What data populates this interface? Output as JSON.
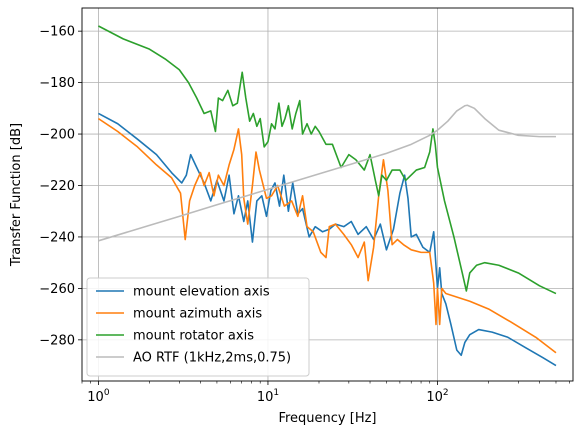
{
  "chart_data": {
    "type": "line",
    "xlabel": "Frequency [Hz]",
    "ylabel": "Transfer Function [dB]",
    "xscale": "log",
    "xlim": [
      0.8,
      630
    ],
    "ylim": [
      -296,
      -151
    ],
    "x_ticks": [
      {
        "value": 1,
        "base": "10",
        "exp": "0"
      },
      {
        "value": 10,
        "base": "10",
        "exp": "1"
      },
      {
        "value": 100,
        "base": "10",
        "exp": "2"
      }
    ],
    "y_ticks": [
      -280,
      -260,
      -240,
      -220,
      -200,
      -180,
      -160
    ],
    "y_tick_labels": [
      "−280",
      "−260",
      "−240",
      "−220",
      "−200",
      "−180",
      "−160"
    ],
    "grid": true,
    "legend_position": "lower-left",
    "series": [
      {
        "name": "mount elevation axis",
        "color": "#1f77b4",
        "points": [
          [
            1,
            -192
          ],
          [
            1.3,
            -196
          ],
          [
            1.7,
            -202
          ],
          [
            2.2,
            -208
          ],
          [
            2.7,
            -215
          ],
          [
            3.1,
            -219
          ],
          [
            3.3,
            -216
          ],
          [
            3.5,
            -208
          ],
          [
            3.8,
            -213
          ],
          [
            4.2,
            -219
          ],
          [
            4.6,
            -226
          ],
          [
            5,
            -218
          ],
          [
            5.5,
            -226
          ],
          [
            5.9,
            -216
          ],
          [
            6.3,
            -231
          ],
          [
            6.7,
            -224
          ],
          [
            7.2,
            -234
          ],
          [
            7.6,
            -226
          ],
          [
            8.1,
            -242
          ],
          [
            8.6,
            -226
          ],
          [
            9.2,
            -224
          ],
          [
            9.8,
            -232
          ],
          [
            10.4,
            -222
          ],
          [
            11,
            -219
          ],
          [
            11.7,
            -228
          ],
          [
            12.4,
            -216
          ],
          [
            13.2,
            -230
          ],
          [
            14,
            -219
          ],
          [
            15,
            -231
          ],
          [
            16,
            -229
          ],
          [
            17.5,
            -240
          ],
          [
            19,
            -236
          ],
          [
            21,
            -238
          ],
          [
            23,
            -237
          ],
          [
            25,
            -235
          ],
          [
            28,
            -236
          ],
          [
            31,
            -234
          ],
          [
            34,
            -239
          ],
          [
            38,
            -236
          ],
          [
            42,
            -241
          ],
          [
            46,
            -235
          ],
          [
            50,
            -245
          ],
          [
            55,
            -237
          ],
          [
            60,
            -223
          ],
          [
            64,
            -216
          ],
          [
            67,
            -225
          ],
          [
            70,
            -240
          ],
          [
            75,
            -239
          ],
          [
            82,
            -244
          ],
          [
            90,
            -246
          ],
          [
            95,
            -238
          ],
          [
            100,
            -260
          ],
          [
            103,
            -252
          ],
          [
            106,
            -262
          ],
          [
            112,
            -266
          ],
          [
            120,
            -274
          ],
          [
            130,
            -284
          ],
          [
            138,
            -286
          ],
          [
            145,
            -281
          ],
          [
            155,
            -278
          ],
          [
            175,
            -276
          ],
          [
            210,
            -277
          ],
          [
            260,
            -279
          ],
          [
            330,
            -283
          ],
          [
            420,
            -287
          ],
          [
            500,
            -290
          ]
        ]
      },
      {
        "name": "mount azimuth axis",
        "color": "#ff7f0e",
        "points": [
          [
            1,
            -194
          ],
          [
            1.3,
            -199
          ],
          [
            1.7,
            -205
          ],
          [
            2.2,
            -212
          ],
          [
            2.7,
            -217
          ],
          [
            3.05,
            -223
          ],
          [
            3.25,
            -241
          ],
          [
            3.45,
            -226
          ],
          [
            3.7,
            -220
          ],
          [
            4,
            -215
          ],
          [
            4.2,
            -220
          ],
          [
            4.5,
            -215
          ],
          [
            4.8,
            -224
          ],
          [
            5.1,
            -216
          ],
          [
            5.5,
            -220
          ],
          [
            5.9,
            -212
          ],
          [
            6.3,
            -206
          ],
          [
            6.7,
            -198
          ],
          [
            7,
            -208
          ],
          [
            7.2,
            -225
          ],
          [
            7.6,
            -235
          ],
          [
            8.1,
            -220
          ],
          [
            8.5,
            -207
          ],
          [
            8.9,
            -214
          ],
          [
            9.3,
            -219
          ],
          [
            9.8,
            -225
          ],
          [
            10.5,
            -224
          ],
          [
            11.4,
            -220
          ],
          [
            12.5,
            -228
          ],
          [
            13.8,
            -226
          ],
          [
            15,
            -232
          ],
          [
            16,
            -224
          ],
          [
            17,
            -236
          ],
          [
            18.5,
            -238
          ],
          [
            20.5,
            -246
          ],
          [
            22,
            -248
          ],
          [
            23,
            -236
          ],
          [
            25,
            -235
          ],
          [
            28,
            -239
          ],
          [
            31,
            -243
          ],
          [
            34,
            -248
          ],
          [
            37,
            -242
          ],
          [
            39,
            -257
          ],
          [
            42,
            -244
          ],
          [
            45,
            -224
          ],
          [
            48,
            -210
          ],
          [
            51,
            -222
          ],
          [
            54,
            -243
          ],
          [
            58,
            -241
          ],
          [
            63,
            -243
          ],
          [
            70,
            -245
          ],
          [
            80,
            -246
          ],
          [
            90,
            -246
          ],
          [
            95,
            -258
          ],
          [
            98,
            -274
          ],
          [
            100,
            -260
          ],
          [
            103,
            -274
          ],
          [
            106,
            -260
          ],
          [
            112,
            -262
          ],
          [
            125,
            -263
          ],
          [
            155,
            -265
          ],
          [
            200,
            -268
          ],
          [
            270,
            -273
          ],
          [
            380,
            -279
          ],
          [
            500,
            -285
          ]
        ]
      },
      {
        "name": "mount rotator axis",
        "color": "#2ca02c",
        "points": [
          [
            1,
            -158
          ],
          [
            1.4,
            -163
          ],
          [
            2,
            -167
          ],
          [
            2.5,
            -171
          ],
          [
            3,
            -175
          ],
          [
            3.4,
            -180
          ],
          [
            3.8,
            -186
          ],
          [
            4.2,
            -192
          ],
          [
            4.6,
            -191
          ],
          [
            4.9,
            -199
          ],
          [
            5.1,
            -186
          ],
          [
            5.4,
            -187
          ],
          [
            5.8,
            -183
          ],
          [
            6.2,
            -189
          ],
          [
            6.6,
            -188
          ],
          [
            7.05,
            -176
          ],
          [
            7.4,
            -186
          ],
          [
            7.8,
            -195
          ],
          [
            8.2,
            -192
          ],
          [
            8.6,
            -197
          ],
          [
            9,
            -194
          ],
          [
            9.5,
            -205
          ],
          [
            10,
            -203
          ],
          [
            10.5,
            -196
          ],
          [
            11,
            -198
          ],
          [
            11.6,
            -188
          ],
          [
            12.1,
            -197
          ],
          [
            12.6,
            -194
          ],
          [
            13.2,
            -189
          ],
          [
            13.9,
            -198
          ],
          [
            14.6,
            -192
          ],
          [
            15.4,
            -187
          ],
          [
            16,
            -200
          ],
          [
            17,
            -196
          ],
          [
            18,
            -200
          ],
          [
            19,
            -197
          ],
          [
            20,
            -199
          ],
          [
            22,
            -204
          ],
          [
            24,
            -204
          ],
          [
            27,
            -213
          ],
          [
            30,
            -208
          ],
          [
            33,
            -210
          ],
          [
            37,
            -214
          ],
          [
            40,
            -208
          ],
          [
            43,
            -218
          ],
          [
            45,
            -224
          ],
          [
            47,
            -216
          ],
          [
            50,
            -218
          ],
          [
            54,
            -214
          ],
          [
            60,
            -214
          ],
          [
            65,
            -218
          ],
          [
            75,
            -214
          ],
          [
            84,
            -213
          ],
          [
            90,
            -207
          ],
          [
            94,
            -198
          ],
          [
            97,
            -204
          ],
          [
            100,
            -213
          ],
          [
            110,
            -226
          ],
          [
            125,
            -240
          ],
          [
            140,
            -254
          ],
          [
            148,
            -261
          ],
          [
            155,
            -254
          ],
          [
            170,
            -251
          ],
          [
            190,
            -250
          ],
          [
            230,
            -251
          ],
          [
            300,
            -254
          ],
          [
            400,
            -259
          ],
          [
            500,
            -262
          ]
        ]
      },
      {
        "name": "AO RTF (1kHz,2ms,0.75)",
        "color": "#bbbbbb",
        "points": [
          [
            1,
            -241.5
          ],
          [
            2,
            -235.5
          ],
          [
            3,
            -232
          ],
          [
            5,
            -227.5
          ],
          [
            10,
            -221.5
          ],
          [
            20,
            -215.5
          ],
          [
            30,
            -212
          ],
          [
            50,
            -207.5
          ],
          [
            70,
            -204
          ],
          [
            90,
            -200.5
          ],
          [
            100,
            -198.5
          ],
          [
            115,
            -195
          ],
          [
            130,
            -191
          ],
          [
            145,
            -189
          ],
          [
            150,
            -188.8
          ],
          [
            165,
            -190
          ],
          [
            190,
            -194
          ],
          [
            230,
            -198.5
          ],
          [
            300,
            -200.5
          ],
          [
            400,
            -201
          ],
          [
            500,
            -201
          ]
        ]
      }
    ]
  }
}
